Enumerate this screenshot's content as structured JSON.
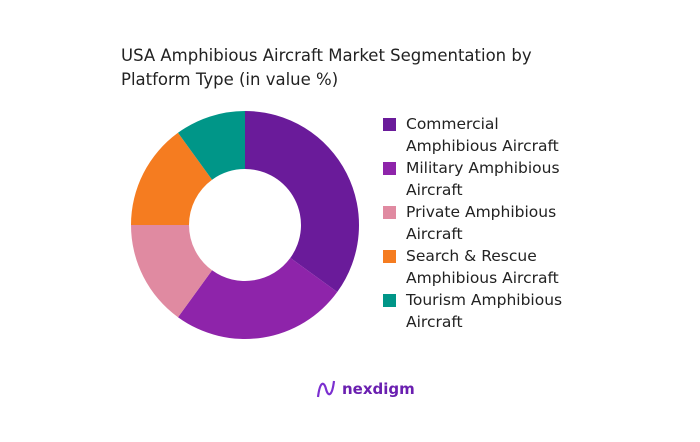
{
  "chart_data": {
    "type": "pie",
    "donut": true,
    "title": "USA Amphibious Aircraft Market Segmentation by Platform Type (in value %)",
    "categories": [
      "Commercial Amphibious Aircraft",
      "Military Amphibious Aircraft",
      "Private Amphibious Aircraft",
      "Search & Rescue Amphibious Aircraft",
      "Tourism Amphibious Aircraft"
    ],
    "values": [
      35,
      25,
      15,
      15,
      10
    ],
    "colors": [
      "#6a1b9a",
      "#8e24aa",
      "#e08aa1",
      "#f57c20",
      "#009688"
    ],
    "legend_position": "right"
  },
  "logo": {
    "text": "nexdigm"
  }
}
